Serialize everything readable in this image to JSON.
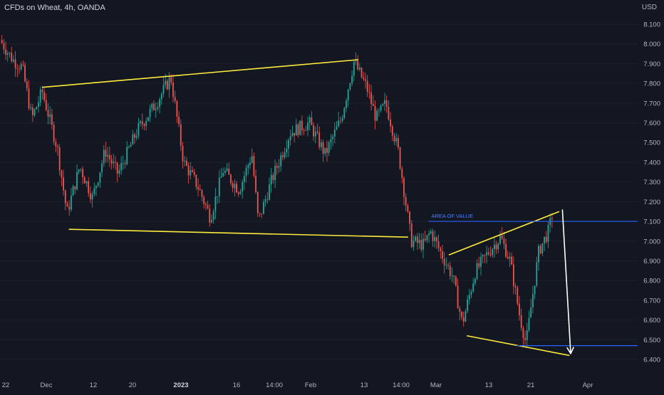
{
  "header": {
    "title": "CFDs on Wheat, 4h, OANDA",
    "currency": "USD"
  },
  "chart_data": {
    "type": "candlestick",
    "symbol": "CFDs on Wheat",
    "interval": "4h",
    "source": "OANDA",
    "ylim": [
      6.35,
      8.14
    ],
    "y_ticks": [
      "8.100",
      "8.000",
      "7.900",
      "7.800",
      "7.700",
      "7.600",
      "7.500",
      "7.400",
      "7.300",
      "7.200",
      "7.100",
      "7.000",
      "6.900",
      "6.800",
      "6.700",
      "6.600",
      "6.500",
      "6.400"
    ],
    "x_ticks": [
      "22",
      "Dec",
      "12",
      "20",
      "2023",
      "16",
      "14:00",
      "Feb",
      "13",
      "14:00",
      "Mar",
      "13",
      "21",
      "Apr"
    ],
    "price_path": [
      [
        0,
        8.02
      ],
      [
        0.02,
        7.92
      ],
      [
        0.035,
        7.88
      ],
      [
        0.05,
        7.62
      ],
      [
        0.066,
        7.76
      ],
      [
        0.09,
        7.47
      ],
      [
        0.105,
        7.14
      ],
      [
        0.125,
        7.38
      ],
      [
        0.145,
        7.22
      ],
      [
        0.165,
        7.46
      ],
      [
        0.185,
        7.34
      ],
      [
        0.215,
        7.56
      ],
      [
        0.245,
        7.7
      ],
      [
        0.268,
        7.83
      ],
      [
        0.288,
        7.4
      ],
      [
        0.31,
        7.28
      ],
      [
        0.33,
        7.12
      ],
      [
        0.35,
        7.36
      ],
      [
        0.375,
        7.26
      ],
      [
        0.395,
        7.44
      ],
      [
        0.405,
        7.1
      ],
      [
        0.425,
        7.3
      ],
      [
        0.455,
        7.55
      ],
      [
        0.485,
        7.6
      ],
      [
        0.51,
        7.44
      ],
      [
        0.535,
        7.62
      ],
      [
        0.555,
        7.91
      ],
      [
        0.575,
        7.78
      ],
      [
        0.59,
        7.62
      ],
      [
        0.605,
        7.7
      ],
      [
        0.625,
        7.45
      ],
      [
        0.645,
        7.0
      ],
      [
        0.665,
        6.98
      ],
      [
        0.675,
        7.05
      ],
      [
        0.69,
        6.95
      ],
      [
        0.71,
        6.82
      ],
      [
        0.725,
        6.58
      ],
      [
        0.745,
        6.84
      ],
      [
        0.765,
        6.94
      ],
      [
        0.785,
        7.02
      ],
      [
        0.8,
        6.9
      ],
      [
        0.815,
        6.62
      ],
      [
        0.825,
        6.48
      ],
      [
        0.835,
        6.72
      ],
      [
        0.845,
        6.95
      ],
      [
        0.86,
        7.05
      ],
      [
        0.868,
        7.16
      ]
    ],
    "annotations": {
      "upper_trendline": {
        "points": [
          [
            0.066,
            7.78
          ],
          [
            0.562,
            7.92
          ]
        ],
        "color": "#ffeb3b"
      },
      "lower_trendline": {
        "points": [
          [
            0.108,
            7.06
          ],
          [
            0.64,
            7.02
          ]
        ],
        "color": "#ffeb3b"
      },
      "wedge_upper_line": {
        "points": [
          [
            0.704,
            6.93
          ],
          [
            0.877,
            7.15
          ]
        ],
        "color": "#ffeb3b"
      },
      "wedge_lower_line": {
        "points": [
          [
            0.732,
            6.52
          ],
          [
            0.893,
            6.42
          ]
        ],
        "color": "#ffeb3b"
      },
      "area_of_value": {
        "label": "AREA OF VALUE",
        "level": 7.1,
        "start": 0.672,
        "color": "#2962ff"
      },
      "support_level": {
        "level": 6.47,
        "start": 0.81,
        "color": "#2962ff"
      },
      "projection_arrow": {
        "from": [
          0.882,
          7.16
        ],
        "to": [
          0.895,
          6.43
        ],
        "color": "#ffffff"
      }
    }
  }
}
